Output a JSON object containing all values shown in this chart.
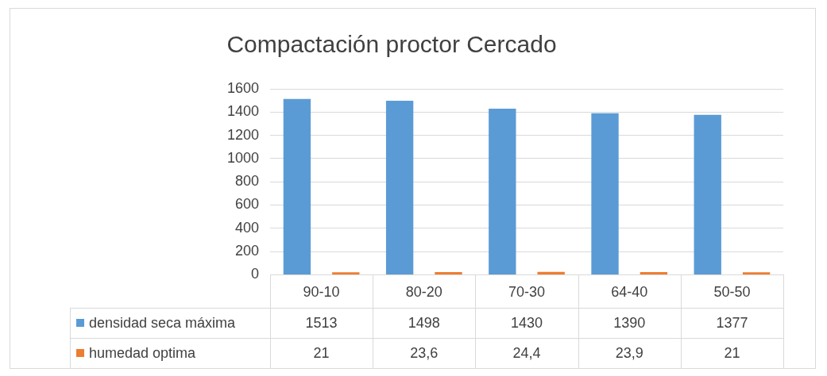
{
  "chart_data": {
    "type": "bar",
    "title": "Compactación proctor Cercado",
    "categories": [
      "90-10",
      "80-20",
      "70-30",
      "64-40",
      "50-50"
    ],
    "series": [
      {
        "name": "densidad seca máxima",
        "color": "#5b9bd5",
        "values": [
          1513,
          1498,
          1430,
          1390,
          1377
        ],
        "value_labels": [
          "1513",
          "1498",
          "1430",
          "1390",
          "1377"
        ]
      },
      {
        "name": "humedad optima",
        "color": "#ed7d31",
        "values": [
          21,
          23.6,
          24.4,
          23.9,
          21
        ],
        "value_labels": [
          "21",
          "23,6",
          "24,4",
          "23,9",
          "21"
        ]
      }
    ],
    "ylim": [
      0,
      1600
    ],
    "yticks": [
      0,
      200,
      400,
      600,
      800,
      1000,
      1200,
      1400,
      1600
    ],
    "grid": "y",
    "legend": "bottom"
  }
}
